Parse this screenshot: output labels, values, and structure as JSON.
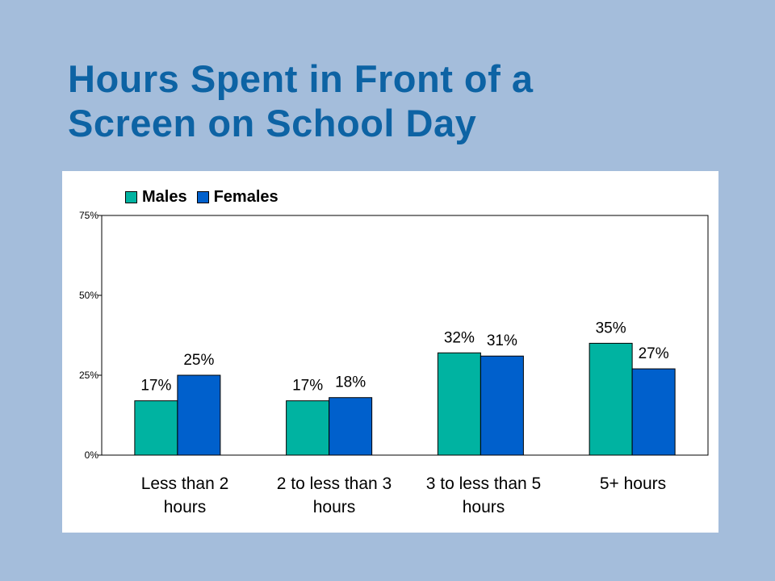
{
  "slide": {
    "title_line1": "Hours Spent in Front of a",
    "title_line2": "Screen on School Day"
  },
  "colors": {
    "background": "#a4bddb",
    "title": "#0d63a4",
    "males": "#00b3a1",
    "females": "#0060cc"
  },
  "chart_data": {
    "type": "bar",
    "categories": [
      [
        "Less than 2",
        "hours"
      ],
      [
        "2 to less than 3",
        "hours"
      ],
      [
        "3 to less than 5",
        "hours"
      ],
      [
        "5+ hours"
      ]
    ],
    "series": [
      {
        "name": "Males",
        "values": [
          17,
          17,
          32,
          35
        ],
        "labels": [
          "17%",
          "17%",
          "32%",
          "35%"
        ]
      },
      {
        "name": "Females",
        "values": [
          25,
          18,
          31,
          27
        ],
        "labels": [
          "25%",
          "18%",
          "31%",
          "27%"
        ]
      }
    ],
    "yticks": [
      "0%",
      "25%",
      "50%",
      "75%"
    ],
    "ytick_values": [
      0,
      25,
      50,
      75
    ],
    "ylim": [
      0,
      75
    ],
    "grid": false,
    "legend": "top-left"
  }
}
